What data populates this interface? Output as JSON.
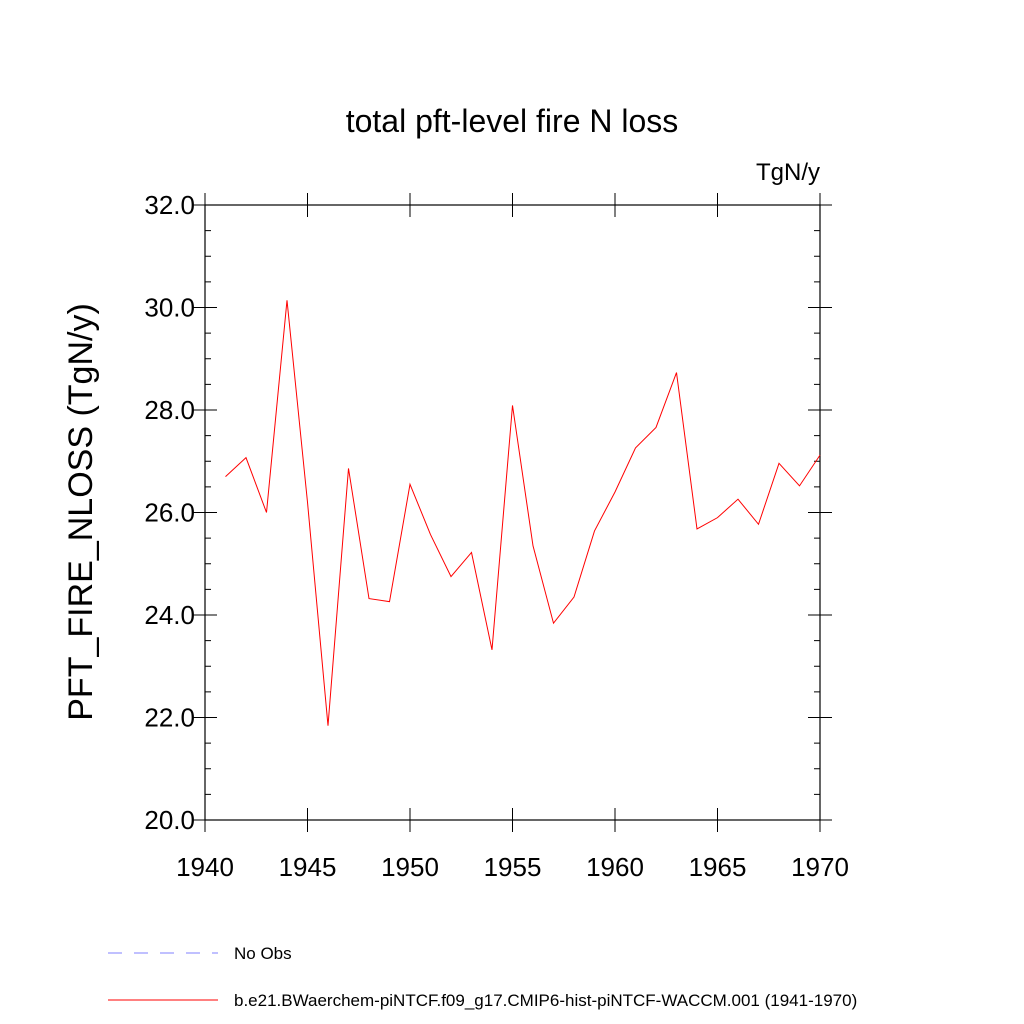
{
  "chart_data": {
    "type": "line",
    "title": "total pft-level fire N loss",
    "units_label": "TgN/y",
    "ylabel": "PFT_FIRE_NLOSS  (TgN/y)",
    "xlabel": "",
    "xlim": [
      1940,
      1970
    ],
    "ylim": [
      20.0,
      32.0
    ],
    "x_ticks": [
      "1940",
      "1945",
      "1950",
      "1955",
      "1960",
      "1965",
      "1970"
    ],
    "y_ticks": [
      "20.0",
      "22.0",
      "24.0",
      "26.0",
      "28.0",
      "30.0",
      "32.0"
    ],
    "grid": false,
    "series": [
      {
        "name": "b.e21.BWaerchem-piNTCF.f09_g17.CMIP6-hist-piNTCF-WACCM.001 (1941-1970)",
        "color": "#ff0000",
        "x": [
          1941,
          1942,
          1943,
          1944,
          1945,
          1946,
          1947,
          1948,
          1949,
          1950,
          1951,
          1952,
          1953,
          1954,
          1955,
          1956,
          1957,
          1958,
          1959,
          1960,
          1961,
          1962,
          1963,
          1964,
          1965,
          1966,
          1967,
          1968,
          1969,
          1970
        ],
        "values": [
          26.7,
          27.07,
          26.0,
          30.14,
          26.2,
          21.84,
          26.86,
          24.32,
          24.26,
          26.55,
          25.57,
          24.75,
          25.22,
          23.32,
          28.09,
          25.35,
          23.84,
          24.35,
          25.64,
          26.4,
          27.26,
          27.66,
          28.73,
          25.68,
          25.9,
          26.26,
          25.77,
          26.96,
          26.52,
          27.12
        ]
      }
    ],
    "legend": [
      {
        "label": "No Obs",
        "color": "#8080ff",
        "style": "dashed"
      },
      {
        "label": "b.e21.BWaerchem-piNTCF.f09_g17.CMIP6-hist-piNTCF-WACCM.001 (1941-1970)",
        "color": "#ff0000",
        "style": "solid"
      }
    ],
    "legend_position": "bottom-left"
  }
}
